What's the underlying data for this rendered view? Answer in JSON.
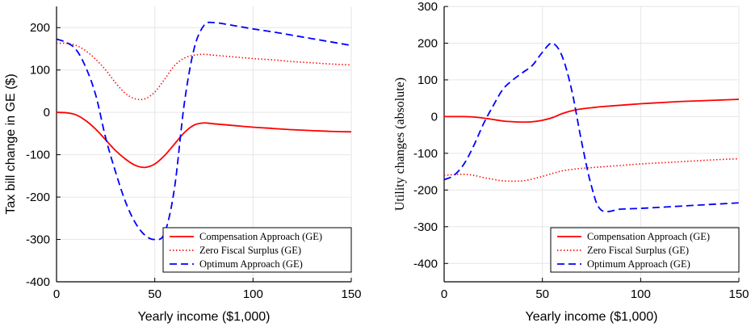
{
  "chart_data": [
    {
      "type": "line",
      "xlabel": "Yearly income ($1,000)",
      "ylabel": "Tax bill change in GE ($)",
      "xlim": [
        0,
        150
      ],
      "ylim": [
        -400,
        250
      ],
      "xticks": [
        0,
        50,
        100,
        150
      ],
      "yticks": [
        -400,
        -300,
        -200,
        -100,
        0,
        100,
        200
      ],
      "grid": true,
      "legend_position": "bottom-right",
      "x": [
        0,
        5,
        10,
        15,
        20,
        25,
        30,
        35,
        40,
        45,
        50,
        55,
        60,
        65,
        70,
        75,
        80,
        90,
        100,
        110,
        120,
        130,
        140,
        150
      ],
      "series": [
        {
          "name": "Compensation Approach (GE)",
          "color": "#ff0000",
          "style": "solid",
          "values": [
            0,
            -1,
            -6,
            -20,
            -40,
            -65,
            -90,
            -110,
            -125,
            -130,
            -122,
            -102,
            -75,
            -48,
            -30,
            -25,
            -27,
            -31,
            -35,
            -38,
            -41,
            -43,
            -45,
            -46
          ]
        },
        {
          "name": "Zero Fiscal Surplus (GE)",
          "color": "#ff0000",
          "style": "dotted",
          "values": [
            163,
            163,
            158,
            145,
            125,
            100,
            70,
            45,
            32,
            32,
            48,
            78,
            110,
            128,
            135,
            137,
            135,
            131,
            127,
            124,
            120,
            117,
            114,
            112
          ]
        },
        {
          "name": "Optimum Approach (GE)",
          "color": "#0000ff",
          "style": "dashed",
          "values": [
            173,
            165,
            148,
            105,
            40,
            -60,
            -140,
            -210,
            -260,
            -290,
            -300,
            -285,
            -180,
            20,
            150,
            205,
            212,
            205,
            197,
            190,
            182,
            174,
            166,
            158
          ]
        }
      ]
    },
    {
      "type": "line",
      "xlabel": "Yearly income ($1,000)",
      "ylabel": "Utility changes (absolute)",
      "xlim": [
        0,
        150
      ],
      "ylim": [
        -450,
        300
      ],
      "xticks": [
        0,
        50,
        100,
        150
      ],
      "yticks": [
        -400,
        -300,
        -200,
        -100,
        0,
        100,
        200,
        300
      ],
      "grid": true,
      "legend_position": "bottom-right",
      "x": [
        0,
        5,
        10,
        15,
        20,
        25,
        30,
        35,
        40,
        45,
        50,
        55,
        60,
        65,
        70,
        75,
        80,
        90,
        100,
        110,
        120,
        130,
        140,
        150
      ],
      "series": [
        {
          "name": "Compensation Approach (GE)",
          "color": "#ff0000",
          "style": "solid",
          "values": [
            0,
            0,
            0,
            -1,
            -4,
            -8,
            -12,
            -14,
            -15,
            -14,
            -10,
            -3,
            8,
            16,
            21,
            24,
            27,
            31,
            35,
            38,
            41,
            43,
            45,
            47
          ]
        },
        {
          "name": "Zero Fiscal Surplus (GE)",
          "color": "#ff0000",
          "style": "dotted",
          "values": [
            -160,
            -158,
            -157,
            -160,
            -166,
            -171,
            -175,
            -176,
            -175,
            -170,
            -163,
            -155,
            -148,
            -144,
            -141,
            -139,
            -137,
            -133,
            -129,
            -126,
            -123,
            -120,
            -117,
            -115
          ]
        },
        {
          "name": "Optimum Approach (GE)",
          "color": "#0000ff",
          "style": "dashed",
          "values": [
            -172,
            -160,
            -130,
            -80,
            -20,
            30,
            75,
            100,
            120,
            140,
            175,
            200,
            165,
            70,
            -70,
            -190,
            -255,
            -252,
            -250,
            -247,
            -244,
            -241,
            -238,
            -235
          ]
        }
      ]
    }
  ]
}
